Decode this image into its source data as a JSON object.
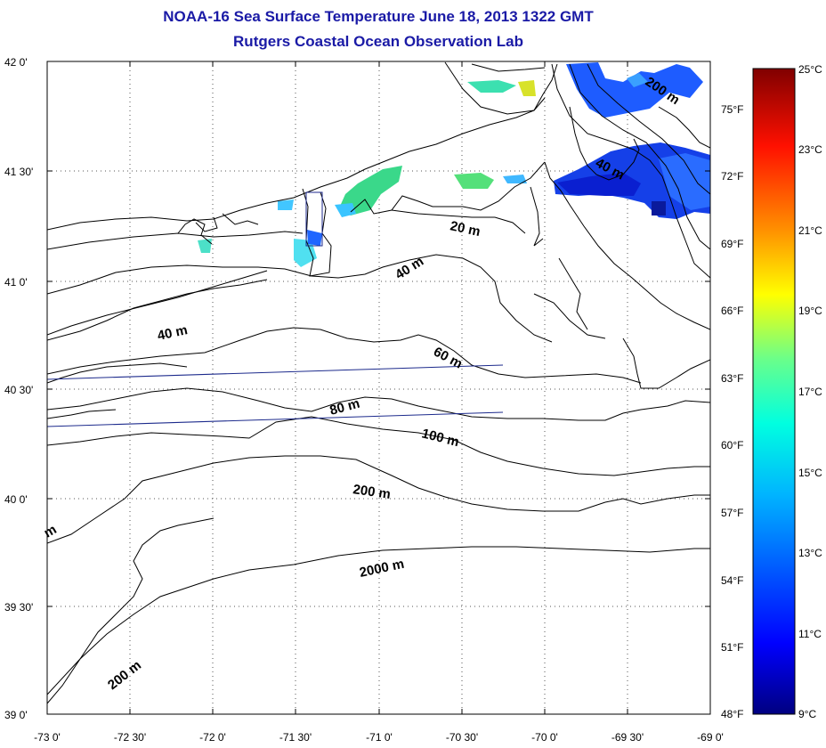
{
  "title": "NOAA-16 Sea Surface Temperature June 18, 2013 1322 GMT",
  "subtitle": "Rutgers Coastal Ocean Observation Lab",
  "axes": {
    "lat_labels": [
      "42 0'",
      "41 30'",
      "41 0'",
      "40 30'",
      "40 0'",
      "39 30'",
      "39 0'"
    ],
    "lon_labels": [
      "-73 0'",
      "-72 30'",
      "-72 0'",
      "-71 30'",
      "-71 0'",
      "-70 30'",
      "-70 0'",
      "-69 30'",
      "-69 0'"
    ]
  },
  "contour_labels": [
    "20 m",
    "40 m",
    "40 m",
    "60 m",
    "80 m",
    "100 m",
    "200 m",
    "2000 m",
    "200 m",
    "200 m",
    "40 m",
    "m"
  ],
  "colorbar": {
    "celsius_labels": [
      "25°C",
      "23°C",
      "21°C",
      "19°C",
      "17°C",
      "15°C",
      "13°C",
      "11°C",
      "9°C"
    ],
    "fahrenheit_labels": [
      "75°F",
      "72°F",
      "69°F",
      "66°F",
      "63°F",
      "60°F",
      "57°F",
      "54°F",
      "51°F",
      "48°F"
    ]
  },
  "colors": {
    "title": "#1a1aa6",
    "coast": "#000000",
    "track": "#1c2a8c",
    "warm": "#800000",
    "cold": "#000080"
  }
}
